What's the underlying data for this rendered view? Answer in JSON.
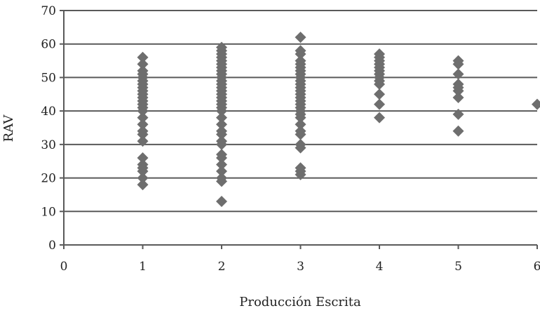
{
  "chart_data": {
    "type": "scatter",
    "title": "",
    "xlabel": "Producción Escrita",
    "ylabel": "RAV",
    "xlim": [
      0,
      6
    ],
    "ylim": [
      0,
      70
    ],
    "xticks": [
      0,
      1,
      2,
      3,
      4,
      5,
      6
    ],
    "yticks": [
      0,
      10,
      20,
      30,
      40,
      50,
      60,
      70
    ],
    "grid": "horizontal",
    "marker": "diamond",
    "colors": {
      "marker": "#6e6e6e",
      "grid": "#5a5a5a",
      "axis": "#5a5a5a"
    },
    "points": [
      {
        "x": 1,
        "y": 18
      },
      {
        "x": 1,
        "y": 20
      },
      {
        "x": 1,
        "y": 22
      },
      {
        "x": 1,
        "y": 23
      },
      {
        "x": 1,
        "y": 24
      },
      {
        "x": 1,
        "y": 26
      },
      {
        "x": 1,
        "y": 31
      },
      {
        "x": 1,
        "y": 33
      },
      {
        "x": 1,
        "y": 34
      },
      {
        "x": 1,
        "y": 36
      },
      {
        "x": 1,
        "y": 38
      },
      {
        "x": 1,
        "y": 40
      },
      {
        "x": 1,
        "y": 41
      },
      {
        "x": 1,
        "y": 42
      },
      {
        "x": 1,
        "y": 43
      },
      {
        "x": 1,
        "y": 44
      },
      {
        "x": 1,
        "y": 45
      },
      {
        "x": 1,
        "y": 46
      },
      {
        "x": 1,
        "y": 47
      },
      {
        "x": 1,
        "y": 48
      },
      {
        "x": 1,
        "y": 49
      },
      {
        "x": 1,
        "y": 50
      },
      {
        "x": 1,
        "y": 51
      },
      {
        "x": 1,
        "y": 52
      },
      {
        "x": 1,
        "y": 54
      },
      {
        "x": 1,
        "y": 56
      },
      {
        "x": 2,
        "y": 13
      },
      {
        "x": 2,
        "y": 19
      },
      {
        "x": 2,
        "y": 20
      },
      {
        "x": 2,
        "y": 22
      },
      {
        "x": 2,
        "y": 24
      },
      {
        "x": 2,
        "y": 26
      },
      {
        "x": 2,
        "y": 27
      },
      {
        "x": 2,
        "y": 30
      },
      {
        "x": 2,
        "y": 31
      },
      {
        "x": 2,
        "y": 33
      },
      {
        "x": 2,
        "y": 34
      },
      {
        "x": 2,
        "y": 36
      },
      {
        "x": 2,
        "y": 38
      },
      {
        "x": 2,
        "y": 40
      },
      {
        "x": 2,
        "y": 41
      },
      {
        "x": 2,
        "y": 42
      },
      {
        "x": 2,
        "y": 43
      },
      {
        "x": 2,
        "y": 44
      },
      {
        "x": 2,
        "y": 45
      },
      {
        "x": 2,
        "y": 46
      },
      {
        "x": 2,
        "y": 47
      },
      {
        "x": 2,
        "y": 48
      },
      {
        "x": 2,
        "y": 49
      },
      {
        "x": 2,
        "y": 50
      },
      {
        "x": 2,
        "y": 51
      },
      {
        "x": 2,
        "y": 52
      },
      {
        "x": 2,
        "y": 53
      },
      {
        "x": 2,
        "y": 54
      },
      {
        "x": 2,
        "y": 55
      },
      {
        "x": 2,
        "y": 56
      },
      {
        "x": 2,
        "y": 57
      },
      {
        "x": 2,
        "y": 58
      },
      {
        "x": 2,
        "y": 59
      },
      {
        "x": 3,
        "y": 21
      },
      {
        "x": 3,
        "y": 22
      },
      {
        "x": 3,
        "y": 23
      },
      {
        "x": 3,
        "y": 29
      },
      {
        "x": 3,
        "y": 30
      },
      {
        "x": 3,
        "y": 33
      },
      {
        "x": 3,
        "y": 34
      },
      {
        "x": 3,
        "y": 36
      },
      {
        "x": 3,
        "y": 38
      },
      {
        "x": 3,
        "y": 39
      },
      {
        "x": 3,
        "y": 40
      },
      {
        "x": 3,
        "y": 41
      },
      {
        "x": 3,
        "y": 42
      },
      {
        "x": 3,
        "y": 43
      },
      {
        "x": 3,
        "y": 44
      },
      {
        "x": 3,
        "y": 45
      },
      {
        "x": 3,
        "y": 46
      },
      {
        "x": 3,
        "y": 47
      },
      {
        "x": 3,
        "y": 48
      },
      {
        "x": 3,
        "y": 49
      },
      {
        "x": 3,
        "y": 50
      },
      {
        "x": 3,
        "y": 51
      },
      {
        "x": 3,
        "y": 52
      },
      {
        "x": 3,
        "y": 53
      },
      {
        "x": 3,
        "y": 54
      },
      {
        "x": 3,
        "y": 55
      },
      {
        "x": 3,
        "y": 57
      },
      {
        "x": 3,
        "y": 58
      },
      {
        "x": 3,
        "y": 62
      },
      {
        "x": 4,
        "y": 38
      },
      {
        "x": 4,
        "y": 42
      },
      {
        "x": 4,
        "y": 45
      },
      {
        "x": 4,
        "y": 48
      },
      {
        "x": 4,
        "y": 49
      },
      {
        "x": 4,
        "y": 50
      },
      {
        "x": 4,
        "y": 51
      },
      {
        "x": 4,
        "y": 52
      },
      {
        "x": 4,
        "y": 53
      },
      {
        "x": 4,
        "y": 54
      },
      {
        "x": 4,
        "y": 55
      },
      {
        "x": 4,
        "y": 56
      },
      {
        "x": 4,
        "y": 57
      },
      {
        "x": 5,
        "y": 34
      },
      {
        "x": 5,
        "y": 39
      },
      {
        "x": 5,
        "y": 44
      },
      {
        "x": 5,
        "y": 46
      },
      {
        "x": 5,
        "y": 47
      },
      {
        "x": 5,
        "y": 48
      },
      {
        "x": 5,
        "y": 51
      },
      {
        "x": 5,
        "y": 54
      },
      {
        "x": 5,
        "y": 55
      },
      {
        "x": 6,
        "y": 42
      }
    ]
  }
}
